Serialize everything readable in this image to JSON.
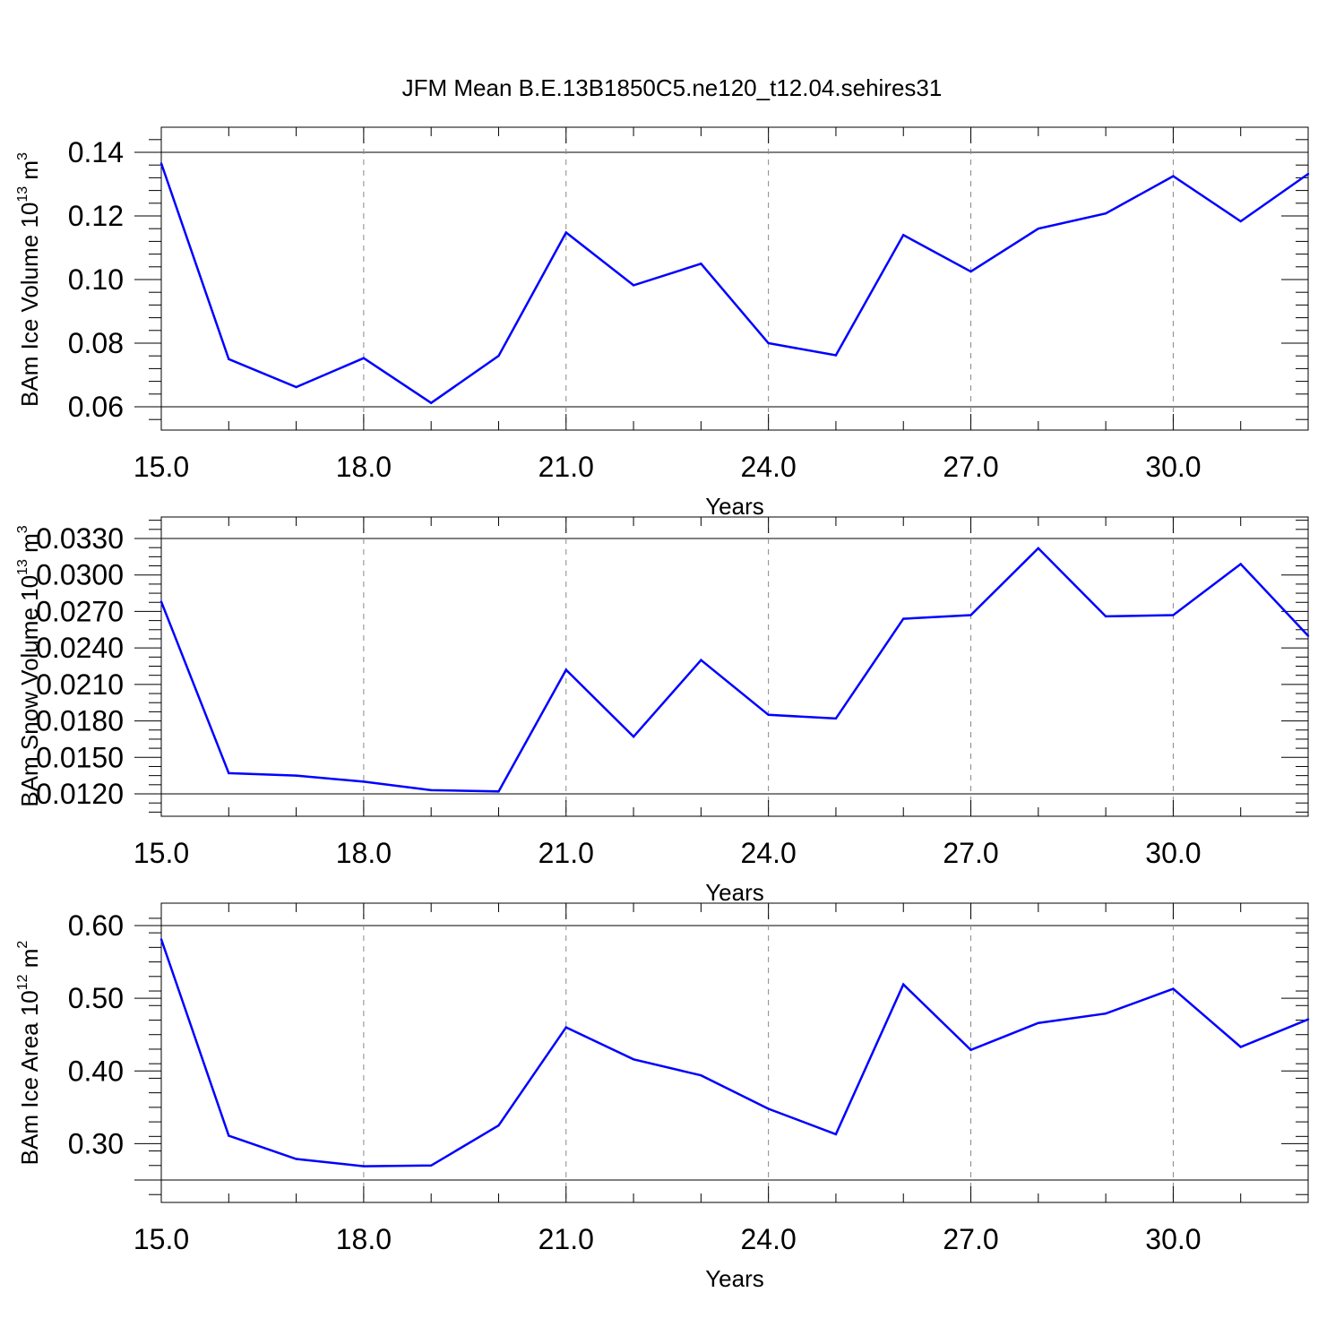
{
  "title": "JFM Mean B.E.13B1850C5.ne120_t12.04.sehires31",
  "line_color": "#0000ff",
  "grid_color": "#888888",
  "chart_data": [
    {
      "type": "line",
      "xlabel": "Years",
      "ylabel": {
        "text": "BAm Ice Volume 10",
        "sup": "13",
        "unit": " m",
        "unit_sup": "3"
      },
      "xlim": [
        15,
        32
      ],
      "ylim": [
        0.06,
        0.14
      ],
      "xticks": [
        "15.0",
        "18.0",
        "21.0",
        "24.0",
        "27.0",
        "30.0"
      ],
      "xtick_values": [
        15,
        18,
        21,
        24,
        27,
        30
      ],
      "yticks": [
        "0.06",
        "0.08",
        "0.10",
        "0.12",
        "0.14"
      ],
      "ytick_values": [
        0.06,
        0.08,
        0.1,
        0.12,
        0.14
      ],
      "grid": "vertical dashed at major x ticks",
      "x": [
        15,
        16,
        17,
        18,
        19,
        20,
        21,
        22,
        23,
        24,
        25,
        26,
        27,
        28,
        29,
        30,
        31,
        32
      ],
      "y": [
        0.1365,
        0.075,
        0.0662,
        0.0753,
        0.0612,
        0.076,
        0.1148,
        0.0982,
        0.105,
        0.08,
        0.0762,
        0.114,
        0.1025,
        0.116,
        0.1208,
        0.1325,
        0.1183,
        0.1332
      ]
    },
    {
      "type": "line",
      "xlabel": "Years",
      "ylabel": {
        "text": "BAm Snow Volume 10",
        "sup": "13",
        "unit": " m",
        "unit_sup": "3"
      },
      "xlim": [
        15,
        32
      ],
      "ylim": [
        0.012,
        0.033
      ],
      "xticks": [
        "15.0",
        "18.0",
        "21.0",
        "24.0",
        "27.0",
        "30.0"
      ],
      "xtick_values": [
        15,
        18,
        21,
        24,
        27,
        30
      ],
      "yticks": [
        "0.0120",
        "0.0150",
        "0.0180",
        "0.0210",
        "0.0240",
        "0.0270",
        "0.0300",
        "0.0330"
      ],
      "ytick_values": [
        0.012,
        0.015,
        0.018,
        0.021,
        0.024,
        0.027,
        0.03,
        0.033
      ],
      "grid": "vertical dashed at major x ticks",
      "x": [
        15,
        16,
        17,
        18,
        19,
        20,
        21,
        22,
        23,
        24,
        25,
        26,
        27,
        28,
        29,
        30,
        31,
        32
      ],
      "y": [
        0.0278,
        0.0137,
        0.0135,
        0.013,
        0.0123,
        0.0122,
        0.0222,
        0.0167,
        0.023,
        0.0185,
        0.0182,
        0.0264,
        0.0267,
        0.0322,
        0.0266,
        0.0267,
        0.0309,
        0.025
      ]
    },
    {
      "type": "line",
      "xlabel": "Years",
      "ylabel": {
        "text": "BAm Ice Area 10",
        "sup": "12",
        "unit": " m",
        "unit_sup": "2"
      },
      "xlim": [
        15,
        32
      ],
      "ylim": [
        0.25,
        0.6
      ],
      "xticks": [
        "15.0",
        "18.0",
        "21.0",
        "24.0",
        "27.0",
        "30.0"
      ],
      "xtick_values": [
        15,
        18,
        21,
        24,
        27,
        30
      ],
      "yticks": [
        "0.30",
        "0.40",
        "0.50",
        "0.60"
      ],
      "ytick_values": [
        0.3,
        0.4,
        0.5,
        0.6
      ],
      "grid": "vertical dashed at major x ticks",
      "x": [
        15,
        16,
        17,
        18,
        19,
        20,
        21,
        22,
        23,
        24,
        25,
        26,
        27,
        28,
        29,
        30,
        31,
        32
      ],
      "y": [
        0.581,
        0.311,
        0.279,
        0.269,
        0.27,
        0.325,
        0.46,
        0.416,
        0.394,
        0.348,
        0.313,
        0.519,
        0.429,
        0.466,
        0.479,
        0.513,
        0.433,
        0.471
      ]
    }
  ]
}
